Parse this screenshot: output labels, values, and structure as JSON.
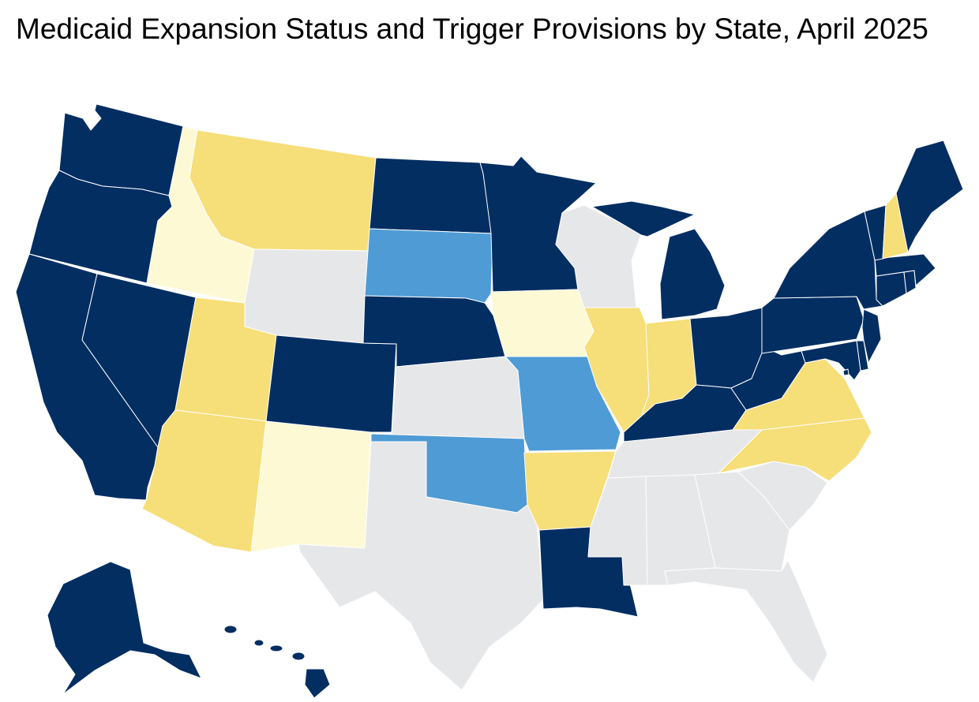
{
  "title": "Medicaid Expansion Status and Trigger Provisions by State, April 2025",
  "colors": {
    "dark_navy": "#022e62",
    "medium_blue": "#4f9bd5",
    "gold": "#f6de78",
    "pale_yellow": "#fdf9d4",
    "gray": "#e6e7e9"
  },
  "states": {
    "WA": "dark_navy",
    "OR": "dark_navy",
    "CA": "dark_navy",
    "NV": "dark_navy",
    "ID": "pale_yellow",
    "MT": "gold",
    "WY": "gray",
    "UT": "gold",
    "AZ": "gold",
    "NM": "pale_yellow",
    "CO": "dark_navy",
    "ND": "dark_navy",
    "SD": "medium_blue",
    "NE": "dark_navy",
    "KS": "gray",
    "OK": "medium_blue",
    "TX": "gray",
    "MN": "dark_navy",
    "IA": "pale_yellow",
    "MO": "medium_blue",
    "AR": "gold",
    "LA": "dark_navy",
    "WI": "gray",
    "IL": "gold",
    "MI": "dark_navy",
    "IN": "gold",
    "OH": "dark_navy",
    "KY": "dark_navy",
    "TN": "gray",
    "MS": "gray",
    "AL": "gray",
    "GA": "gray",
    "FL": "gray",
    "SC": "gray",
    "NC": "gold",
    "VA": "gold",
    "WV": "dark_navy",
    "MD": "dark_navy",
    "DE": "dark_navy",
    "PA": "dark_navy",
    "NJ": "dark_navy",
    "NY": "dark_navy",
    "CT": "dark_navy",
    "RI": "dark_navy",
    "MA": "dark_navy",
    "VT": "dark_navy",
    "NH": "gold",
    "ME": "dark_navy",
    "AK": "dark_navy",
    "HI": "dark_navy",
    "DC": "dark_navy"
  }
}
